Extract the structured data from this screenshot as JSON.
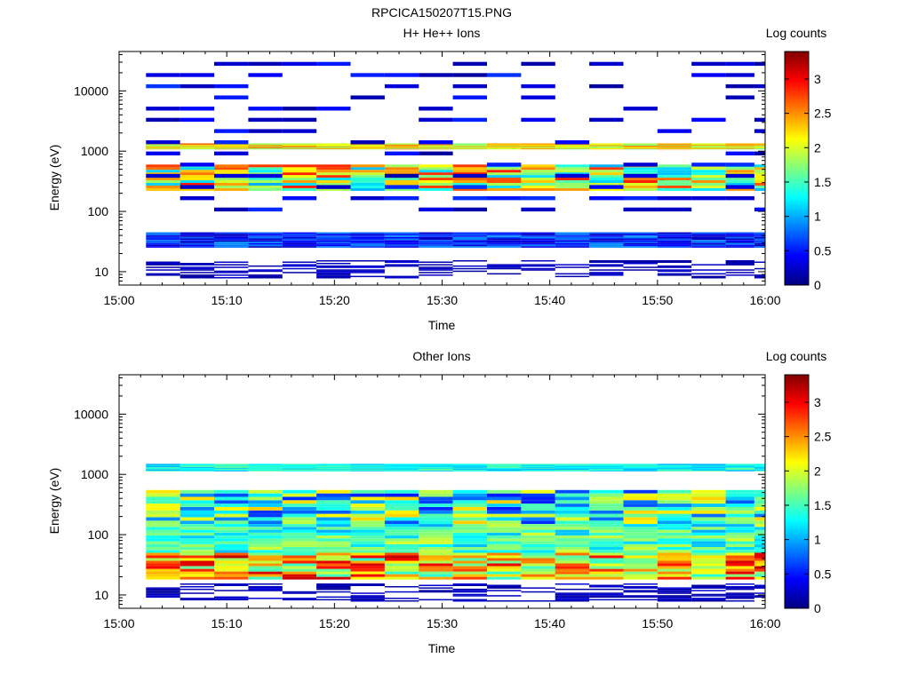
{
  "figure_title": "RPCICA150207T15.PNG",
  "chart_data": [
    {
      "type": "heatmap",
      "title": "H+ He++ Ions",
      "xlabel": "Time",
      "ylabel": "Energy (eV)",
      "xticks": [
        "15:00",
        "15:10",
        "15:20",
        "15:30",
        "15:40",
        "15:50",
        "16:00"
      ],
      "xlim": [
        "15:00",
        "16:00"
      ],
      "yscale": "log",
      "ylim": [
        6,
        45000
      ],
      "yticks": [
        10,
        100,
        1000,
        10000
      ],
      "colorbar": {
        "title": "Log counts",
        "range": [
          0,
          3.4
        ],
        "ticks": [
          "0",
          "0.5",
          "1",
          "1.5",
          "2",
          "2.5",
          "3"
        ],
        "colormap": "jet"
      },
      "time_columns": [
        "15:02:30",
        "15:05:40",
        "15:08:50",
        "15:12:00",
        "15:15:10",
        "15:18:20",
        "15:21:30",
        "15:24:40",
        "15:27:50",
        "15:31:00",
        "15:34:10",
        "15:37:20",
        "15:40:30",
        "15:43:40",
        "15:46:50",
        "15:50:00",
        "15:53:10",
        "15:56:20",
        "15:59:00"
      ],
      "bands": [
        {
          "emin": 1100,
          "emax": 1350,
          "vmin": 1.6,
          "vmax": 2.7
        },
        {
          "emin": 220,
          "emax": 600,
          "vmin": 1.0,
          "vmax": 2.9
        },
        {
          "emin": 25,
          "emax": 45,
          "vmin": 0.2,
          "vmax": 0.9
        },
        {
          "emin": 100,
          "emax": 40000,
          "vmin": 0.1,
          "vmax": 0.6,
          "sparse": true
        },
        {
          "emin": 8,
          "emax": 16,
          "vmin": 0.1,
          "vmax": 0.3,
          "sparse": true
        }
      ]
    },
    {
      "type": "heatmap",
      "title": "Other Ions",
      "xlabel": "Time",
      "ylabel": "Energy (eV)",
      "xticks": [
        "15:00",
        "15:10",
        "15:20",
        "15:30",
        "15:40",
        "15:50",
        "16:00"
      ],
      "xlim": [
        "15:00",
        "16:00"
      ],
      "yscale": "log",
      "ylim": [
        6,
        45000
      ],
      "yticks": [
        10,
        100,
        1000,
        10000
      ],
      "colorbar": {
        "title": "Log counts",
        "range": [
          0,
          3.4
        ],
        "ticks": [
          "0",
          "0.5",
          "1",
          "1.5",
          "2",
          "2.5",
          "3"
        ],
        "colormap": "jet"
      },
      "time_columns": [
        "15:02:30",
        "15:05:40",
        "15:08:50",
        "15:12:00",
        "15:15:10",
        "15:18:20",
        "15:21:30",
        "15:24:40",
        "15:27:50",
        "15:31:00",
        "15:34:10",
        "15:37:20",
        "15:40:30",
        "15:43:40",
        "15:46:50",
        "15:50:00",
        "15:53:10",
        "15:56:20",
        "15:59:00"
      ],
      "bands": [
        {
          "emin": 1150,
          "emax": 1500,
          "vmin": 1.0,
          "vmax": 1.6
        },
        {
          "emin": 150,
          "emax": 550,
          "vmin": 0.5,
          "vmax": 2.3
        },
        {
          "emin": 50,
          "emax": 150,
          "vmin": 1.0,
          "vmax": 2.0
        },
        {
          "emin": 18,
          "emax": 50,
          "vmin": 1.4,
          "vmax": 3.2
        },
        {
          "emin": 8,
          "emax": 16,
          "vmin": 0.1,
          "vmax": 0.3,
          "sparse": true
        }
      ]
    }
  ]
}
